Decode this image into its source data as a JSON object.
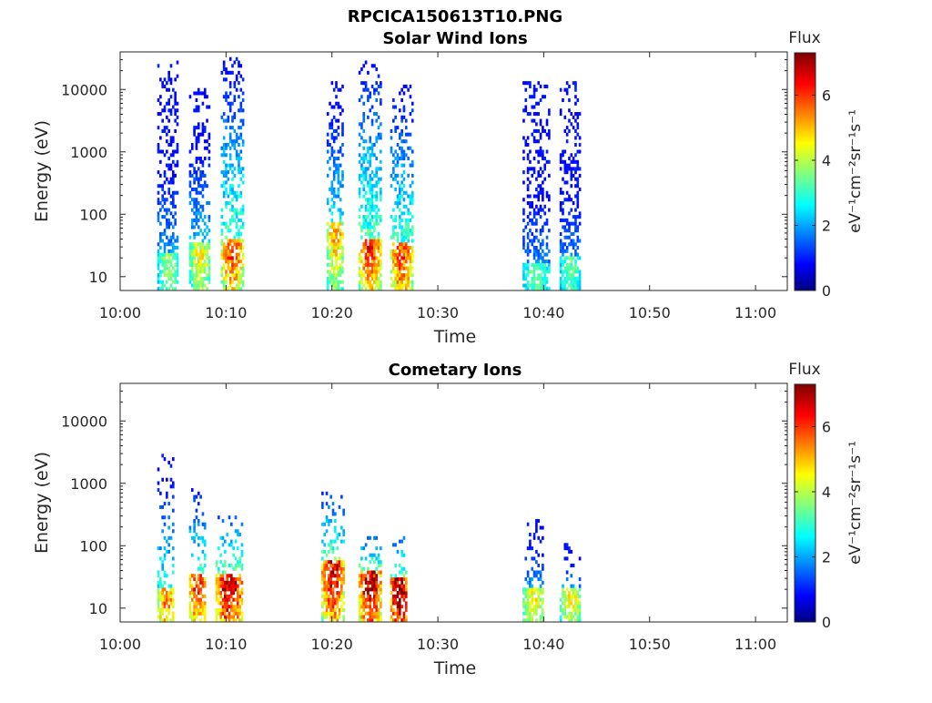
{
  "figure": {
    "title": "RPCICA150613T10.PNG"
  },
  "colormap": [
    "#00007f",
    "#0000ff",
    "#007fff",
    "#00ffff",
    "#7fff7f",
    "#ffff00",
    "#ff7f00",
    "#ff0000",
    "#7f0000"
  ],
  "chart_data": [
    {
      "type": "heatmap",
      "title": "Solar Wind Ions",
      "xlabel": "Time",
      "ylabel": "Energy (eV)",
      "xlim": [
        "10:00",
        "11:03"
      ],
      "x_ticks": [
        "10:00",
        "10:10",
        "10:20",
        "10:30",
        "10:40",
        "10:50",
        "11:00"
      ],
      "y_scale": "log",
      "ylim": [
        6,
        40000
      ],
      "y_ticks": [
        "10",
        "100",
        "1000",
        "10000"
      ],
      "colorbar": {
        "title": "Flux",
        "label": "eV⁻¹cm⁻²sr⁻¹s⁻¹",
        "range": [
          0,
          7.3
        ],
        "ticks": [
          "0",
          "2",
          "4",
          "6"
        ]
      },
      "bursts": [
        {
          "start": "10:03.5",
          "end": "10:05.5",
          "hot_energy_eV": 15,
          "peak_flux": 3.8,
          "max_energy_eV": 27000
        },
        {
          "start": "10:06.5",
          "end": "10:08.5",
          "hot_energy_eV": 20,
          "peak_flux": 4.5,
          "max_energy_eV": 12000
        },
        {
          "start": "10:09.5",
          "end": "10:11.5",
          "hot_energy_eV": 25,
          "peak_flux": 6.0,
          "max_energy_eV": 30000
        },
        {
          "start": "10:19.5",
          "end": "10:21.0",
          "hot_energy_eV": 45,
          "peak_flux": 5.2,
          "max_energy_eV": 15000
        },
        {
          "start": "10:22.5",
          "end": "10:24.5",
          "hot_energy_eV": 25,
          "peak_flux": 6.2,
          "max_energy_eV": 27000
        },
        {
          "start": "10:25.5",
          "end": "10:27.5",
          "hot_energy_eV": 20,
          "peak_flux": 6.0,
          "max_energy_eV": 12000
        },
        {
          "start": "10:38.0",
          "end": "10:40.5",
          "hot_energy_eV": 10,
          "peak_flux": 3.5,
          "max_energy_eV": 13000
        },
        {
          "start": "10:41.5",
          "end": "10:43.5",
          "hot_energy_eV": 12,
          "peak_flux": 3.5,
          "max_energy_eV": 13000
        }
      ]
    },
    {
      "type": "heatmap",
      "title": "Cometary Ions",
      "xlabel": "Time",
      "ylabel": "Energy (eV)",
      "xlim": [
        "10:00",
        "11:03"
      ],
      "x_ticks": [
        "10:00",
        "10:10",
        "10:20",
        "10:30",
        "10:40",
        "10:50",
        "11:00"
      ],
      "y_scale": "log",
      "ylim": [
        6,
        40000
      ],
      "y_ticks": [
        "10",
        "100",
        "1000",
        "10000"
      ],
      "colorbar": {
        "title": "Flux",
        "label": "eV⁻¹cm⁻²sr⁻¹s⁻¹",
        "range": [
          0,
          7.3
        ],
        "ticks": [
          "0",
          "2",
          "4",
          "6"
        ]
      },
      "bursts": [
        {
          "start": "10:03.5",
          "end": "10:05.0",
          "hot_energy_eV": 12,
          "peak_flux": 5.5,
          "max_energy_eV": 3000
        },
        {
          "start": "10:06.5",
          "end": "10:08.0",
          "hot_energy_eV": 20,
          "peak_flux": 6.3,
          "max_energy_eV": 800
        },
        {
          "start": "10:09.0",
          "end": "10:11.5",
          "hot_energy_eV": 22,
          "peak_flux": 7.0,
          "max_energy_eV": 300
        },
        {
          "start": "10:19.0",
          "end": "10:21.0",
          "hot_energy_eV": 35,
          "peak_flux": 6.8,
          "max_energy_eV": 700
        },
        {
          "start": "10:22.5",
          "end": "10:24.5",
          "hot_energy_eV": 25,
          "peak_flux": 7.2,
          "max_energy_eV": 150
        },
        {
          "start": "10:25.5",
          "end": "10:27.0",
          "hot_energy_eV": 18,
          "peak_flux": 7.3,
          "max_energy_eV": 150
        },
        {
          "start": "10:38.0",
          "end": "10:40.0",
          "hot_energy_eV": 12,
          "peak_flux": 4.6,
          "max_energy_eV": 250
        },
        {
          "start": "10:41.5",
          "end": "10:43.5",
          "hot_energy_eV": 13,
          "peak_flux": 4.6,
          "max_energy_eV": 100
        }
      ]
    }
  ]
}
